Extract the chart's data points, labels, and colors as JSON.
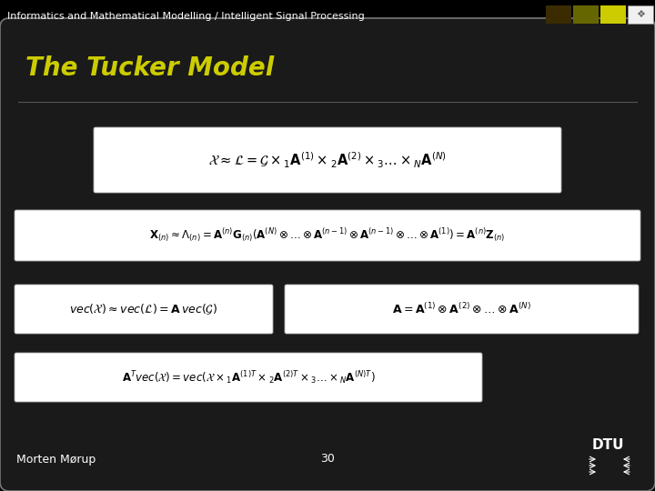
{
  "background_color": "#000000",
  "slide_bg": "#1a1a1a",
  "header_text": "Informatics and Mathematical Modelling / Intelligent Signal Processing",
  "header_color": "#ffffff",
  "header_fontsize": 8,
  "title_text": "The Tucker Model",
  "title_color": "#cccc00",
  "title_fontsize": 20,
  "footer_left": "Morten Mørup",
  "footer_center": "30",
  "footer_color": "#ffffff",
  "footer_fontsize": 9,
  "eq1": "$\\mathcal{X} \\approx \\mathcal{L} = \\mathcal{G} \\times_1 \\mathbf{A}^{(1)} \\times_2 \\mathbf{A}^{(2)} \\times_3 \\ldots \\times_N \\mathbf{A}^{(N)}$",
  "eq2": "$\\mathbf{X}_{(n)} \\approx \\Lambda_{(n)} = \\mathbf{A}^{(n)}\\mathbf{G}_{(n)}(\\mathbf{A}^{(N)} \\otimes \\ldots \\otimes \\mathbf{A}^{(n-1)} \\otimes \\mathbf{A}^{(n-1)} \\otimes \\ldots \\otimes \\mathbf{A}^{(1)}) = \\mathbf{A}^{(n)}\\mathbf{Z}_{(n)}$",
  "eq3a": "$vec(\\mathcal{X}) \\approx vec(\\mathcal{L}) = \\mathbf{A}\\,vec(\\mathcal{G})$",
  "eq3b": "$\\mathbf{A} = \\mathbf{A}^{(1)} \\otimes \\mathbf{A}^{(2)} \\otimes \\ldots \\otimes \\mathbf{A}^{(N)}$",
  "eq4": "$\\mathbf{A}^T vec(\\mathcal{X}) = vec(\\mathcal{X} \\times_1 \\mathbf{A}^{(1)T} \\times_2 \\mathbf{A}^{(2)T} \\times_3 \\ldots \\times_N \\mathbf{A}^{(N)T})$",
  "sq_colors": [
    "#3a2c00",
    "#666600",
    "#cccc00"
  ],
  "sq_white": "#f0f0f0",
  "dtu_color": "#ffffff"
}
